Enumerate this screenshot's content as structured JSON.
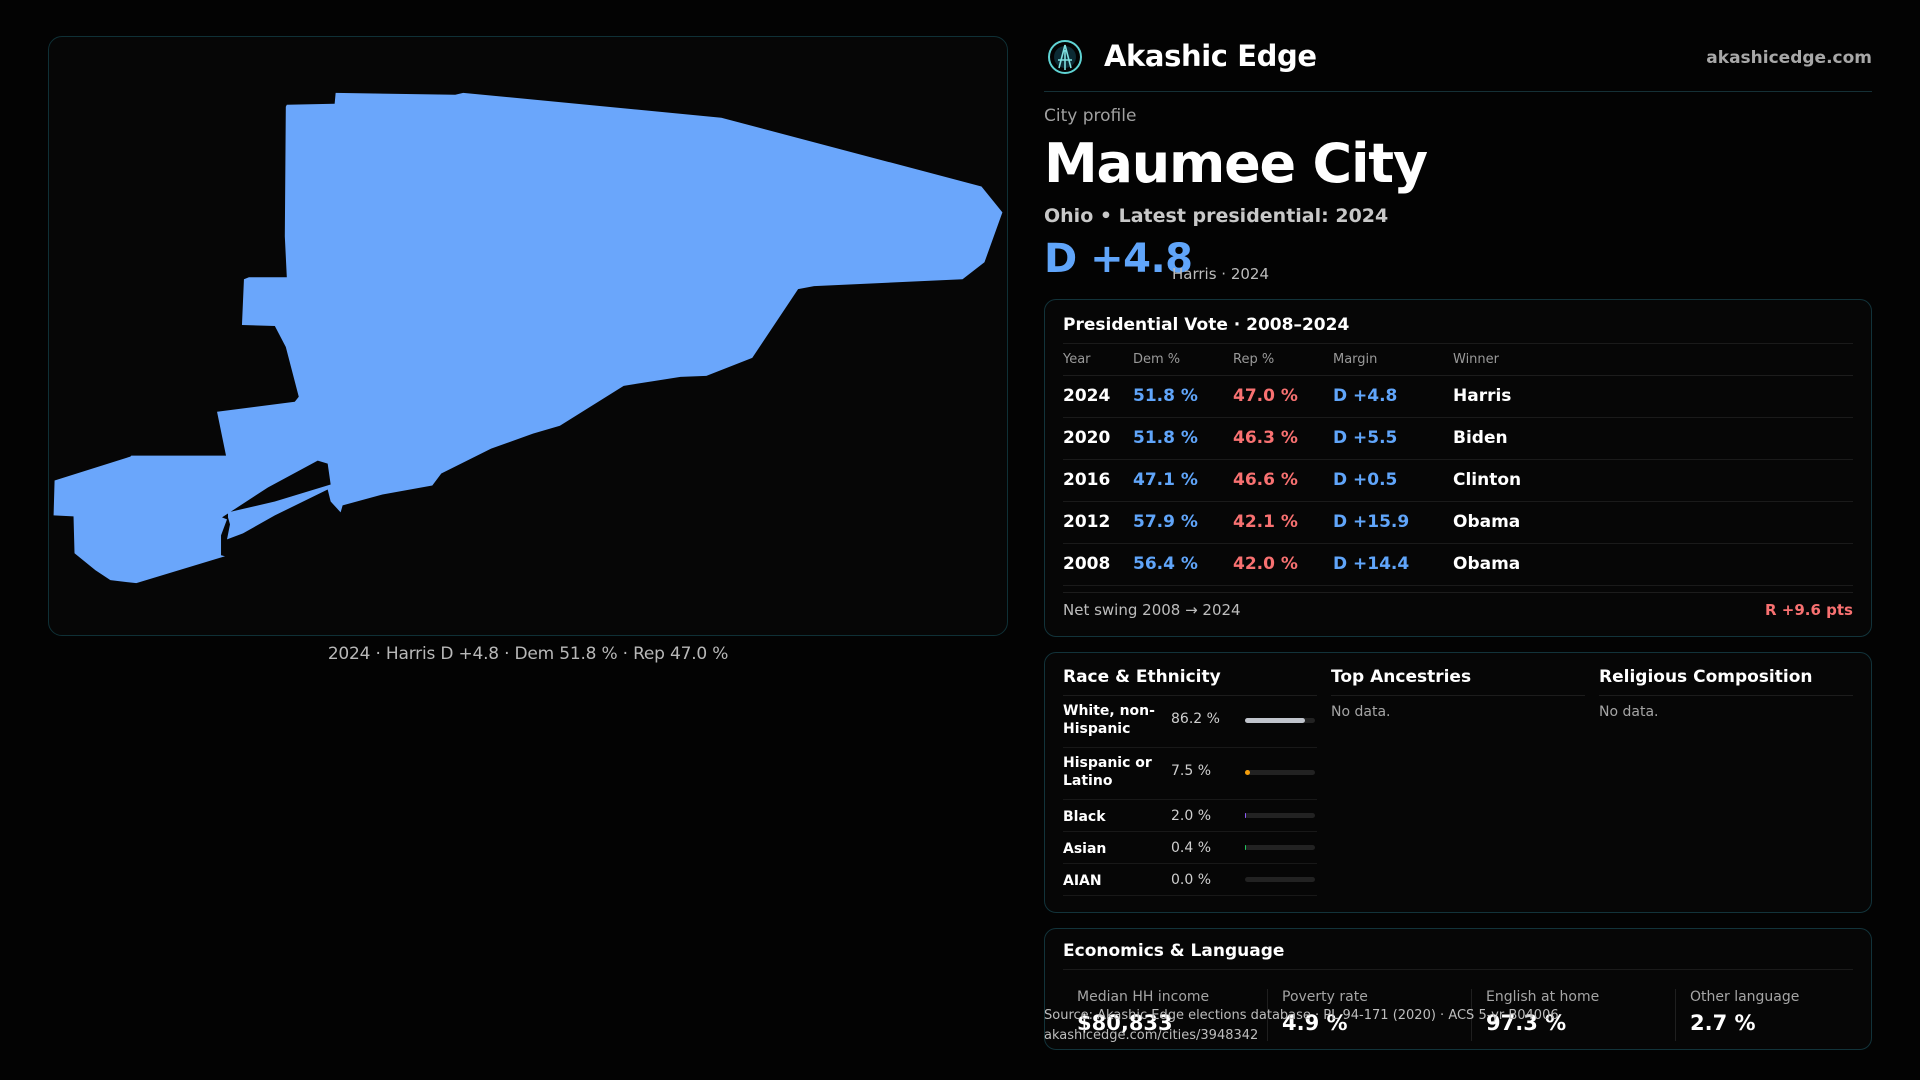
{
  "map": {
    "caption": "2024 · Harris D +4.8 · Dem 51.8 % · Rep 47.0 %",
    "fill_color": "#6aa6fb"
  },
  "header": {
    "brand": "Akashic Edge",
    "site": "akashicedge.com",
    "logo_icon": "compass-logo-icon"
  },
  "profile": {
    "eyebrow": "City profile",
    "city": "Maumee City",
    "subtitle": "Ohio • Latest presidential: 2024",
    "margin": "D +4.8",
    "margin_note": "Harris · 2024"
  },
  "presidential": {
    "title": "Presidential Vote · 2008–2024",
    "columns": [
      "Year",
      "Dem %",
      "Rep %",
      "Margin",
      "Winner"
    ],
    "rows": [
      {
        "year": "2024",
        "dem": "51.8 %",
        "rep": "47.0 %",
        "margin": "D +4.8",
        "winner": "Harris"
      },
      {
        "year": "2020",
        "dem": "51.8 %",
        "rep": "46.3 %",
        "margin": "D +5.5",
        "winner": "Biden"
      },
      {
        "year": "2016",
        "dem": "47.1 %",
        "rep": "46.6 %",
        "margin": "D +0.5",
        "winner": "Clinton"
      },
      {
        "year": "2012",
        "dem": "57.9 %",
        "rep": "42.1 %",
        "margin": "D +15.9",
        "winner": "Obama"
      },
      {
        "year": "2008",
        "dem": "56.4 %",
        "rep": "42.0 %",
        "margin": "D +14.4",
        "winner": "Obama"
      }
    ],
    "swing_label": "Net swing 2008 → 2024",
    "swing_value": "R +9.6 pts"
  },
  "demographics": {
    "race_title": "Race & Ethnicity",
    "race": [
      {
        "label": "White, non-Hispanic",
        "pct": "86.2 %",
        "value": 86.2,
        "color": "#c0c4cc"
      },
      {
        "label": "Hispanic or Latino",
        "pct": "7.5 %",
        "value": 7.5,
        "color": "#f59e0b"
      },
      {
        "label": "Black",
        "pct": "2.0 %",
        "value": 2.0,
        "color": "#8b5cf6"
      },
      {
        "label": "Asian",
        "pct": "0.4 %",
        "value": 0.4,
        "color": "#22c55e"
      },
      {
        "label": "AIAN",
        "pct": "0.0 %",
        "value": 0.0,
        "color": "#ec4899"
      }
    ],
    "ancestry_title": "Top Ancestries",
    "ancestry_empty": "No data.",
    "religion_title": "Religious Composition",
    "religion_empty": "No data."
  },
  "economics": {
    "title": "Economics & Language",
    "stats": [
      {
        "label": "Median HH income",
        "value": "$80,833"
      },
      {
        "label": "Poverty rate",
        "value": "4.9 %"
      },
      {
        "label": "English at home",
        "value": "97.3 %"
      },
      {
        "label": "Other language",
        "value": "2.7 %"
      }
    ]
  },
  "source": {
    "line1": "Source: Akashic Edge elections database · PL 94-171 (2020) · ACS 5-yr B04006",
    "line2": "akashicedge.com/cities/3948342"
  }
}
